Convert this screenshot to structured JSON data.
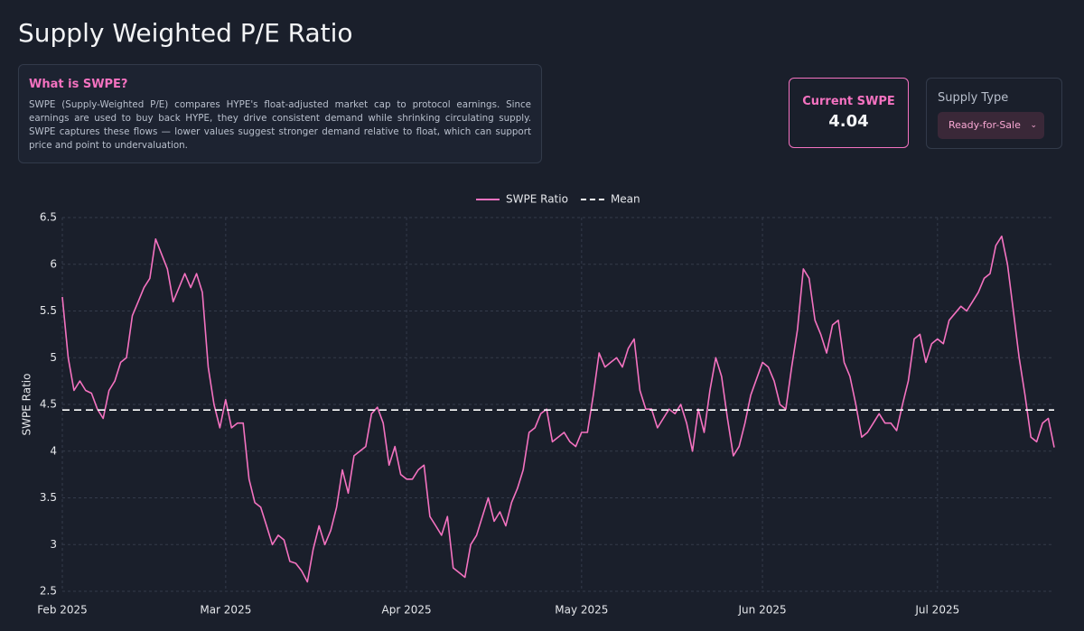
{
  "header": {
    "title": "Supply Weighted P/E Ratio"
  },
  "info": {
    "title": "What is SWPE?",
    "text": "SWPE (Supply-Weighted P/E) compares HYPE's float-adjusted market cap to protocol earnings. Since earnings are used to buy back HYPE, they drive consistent demand while shrinking circulating supply. SWPE captures these flows — lower values suggest stronger demand relative to float, which can support price and point to undervaluation."
  },
  "current": {
    "label": "Current SWPE",
    "value": "4.04"
  },
  "supply": {
    "label": "Supply Type",
    "selected": "Ready-for-Sale"
  },
  "chart_data": {
    "type": "line",
    "ylabel": "SWPE Ratio",
    "x": [
      0,
      1,
      2,
      3,
      4,
      5,
      6,
      7,
      8,
      9,
      10,
      11,
      12,
      13,
      14,
      15,
      16,
      18,
      19,
      20,
      21,
      22,
      23,
      24,
      25,
      26,
      27,
      28,
      29,
      30,
      31,
      32,
      33,
      34,
      35,
      36,
      37,
      38,
      39,
      40,
      41,
      42,
      43,
      44,
      45,
      46,
      47,
      48,
      49,
      50,
      52,
      53,
      54,
      55,
      56,
      57,
      58,
      59,
      60,
      61,
      62,
      63,
      64,
      65,
      66,
      67,
      68,
      69,
      70,
      71,
      72,
      73,
      74,
      75,
      76,
      77,
      78,
      79,
      80,
      81,
      82,
      83,
      84,
      86,
      87,
      88,
      89,
      90,
      91,
      92,
      93,
      94,
      95,
      96,
      97,
      98,
      99,
      100,
      101,
      102,
      103,
      104,
      105,
      106,
      107,
      108,
      109,
      110,
      111,
      112,
      113,
      114,
      115,
      116,
      117,
      118,
      120,
      121,
      122,
      123,
      124,
      125,
      126,
      127,
      128,
      129,
      130,
      131,
      132,
      133,
      134,
      135,
      136,
      137,
      138,
      139,
      140,
      141,
      142,
      143,
      144,
      145,
      146,
      147,
      148,
      149,
      150,
      151,
      152,
      154,
      155,
      156,
      157,
      158,
      159,
      160,
      161,
      162,
      163,
      164,
      165,
      166,
      167,
      168,
      169,
      170
    ],
    "series": [
      {
        "name": "SWPE Ratio",
        "color": "#f472c0",
        "values": [
          5.65,
          5.0,
          4.65,
          4.75,
          4.65,
          4.62,
          4.45,
          4.35,
          4.65,
          4.75,
          4.95,
          5.0,
          5.45,
          5.6,
          5.75,
          5.85,
          6.27,
          5.95,
          5.6,
          5.75,
          5.9,
          5.75,
          5.9,
          5.7,
          4.9,
          4.5,
          4.25,
          4.55,
          4.25,
          4.3,
          4.3,
          3.7,
          3.45,
          3.4,
          3.2,
          3.0,
          3.1,
          3.05,
          2.82,
          2.8,
          2.72,
          2.6,
          2.95,
          3.2,
          3.0,
          3.15,
          3.4,
          3.8,
          3.55,
          3.95,
          4.05,
          4.4,
          4.47,
          4.3,
          3.85,
          4.05,
          3.75,
          3.7,
          3.7,
          3.8,
          3.85,
          3.3,
          3.2,
          3.1,
          3.3,
          2.75,
          2.7,
          2.65,
          3.0,
          3.1,
          3.3,
          3.5,
          3.25,
          3.35,
          3.2,
          3.45,
          3.6,
          3.8,
          4.2,
          4.25,
          4.4,
          4.45,
          4.1,
          4.2,
          4.1,
          4.05,
          4.2,
          4.2,
          4.6,
          5.05,
          4.9,
          4.95,
          5.0,
          4.9,
          5.1,
          5.2,
          4.65,
          4.45,
          4.45,
          4.25,
          4.35,
          4.45,
          4.4,
          4.5,
          4.3,
          4.0,
          4.45,
          4.2,
          4.65,
          5.0,
          4.8,
          4.35,
          3.95,
          4.05,
          4.3,
          4.6,
          4.95,
          4.9,
          4.75,
          4.5,
          4.45,
          4.9,
          5.3,
          5.95,
          5.85,
          5.4,
          5.25,
          5.05,
          5.35,
          5.4,
          4.95,
          4.8,
          4.5,
          4.15,
          4.2,
          4.3,
          4.4,
          4.3,
          4.3,
          4.22,
          4.5,
          4.75,
          5.2,
          5.25,
          4.95,
          5.15,
          5.2,
          5.15,
          5.4,
          5.55,
          5.5,
          5.6,
          5.7,
          5.85,
          5.9,
          6.2,
          6.3,
          6.0,
          5.5,
          5.0,
          4.6,
          4.15,
          4.1,
          4.3,
          4.35,
          4.04
        ]
      }
    ],
    "mean": {
      "name": "Mean",
      "value": 4.44,
      "color": "#ffffff"
    },
    "xlim": [
      0,
      170
    ],
    "xticks": [
      {
        "value": 0,
        "label": "Feb 2025"
      },
      {
        "value": 28,
        "label": "Mar 2025"
      },
      {
        "value": 59,
        "label": "Apr 2025"
      },
      {
        "value": 89,
        "label": "May 2025"
      },
      {
        "value": 120,
        "label": "Jun 2025"
      },
      {
        "value": 150,
        "label": "Jul 2025"
      }
    ],
    "ylim": [
      2.5,
      6.5
    ],
    "yticks": [
      2.5,
      3,
      3.5,
      4,
      4.5,
      5,
      5.5,
      6,
      6.5
    ],
    "grid": true,
    "legend": "top"
  }
}
